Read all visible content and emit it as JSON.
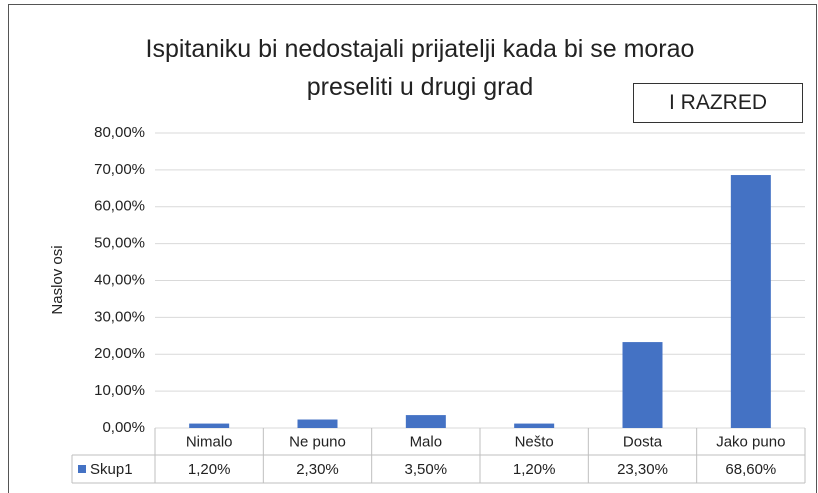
{
  "chart_data": {
    "type": "bar",
    "title": "Ispitaniku bi nedostajali prijatelji kada bi se morao preseliti u drugi grad",
    "annotation": "I RAZRED",
    "y_label": "Naslov osi",
    "categories": [
      "Nimalo",
      "Ne puno",
      "Malo",
      "Nešto",
      "Dosta",
      "Jako puno"
    ],
    "series": [
      {
        "name": "Skup1",
        "color": "#4472c4",
        "values": [
          1.2,
          2.3,
          3.5,
          1.2,
          23.3,
          68.6
        ],
        "value_labels": [
          "1,20%",
          "2,30%",
          "3,50%",
          "1,20%",
          "23,30%",
          "68,60%"
        ]
      }
    ],
    "ylim": [
      0,
      80
    ],
    "yticks": [
      {
        "value": 0,
        "label": "0,00%"
      },
      {
        "value": 10,
        "label": "10,00%"
      },
      {
        "value": 20,
        "label": "20,00%"
      },
      {
        "value": 30,
        "label": "30,00%"
      },
      {
        "value": 40,
        "label": "40,00%"
      },
      {
        "value": 50,
        "label": "50,00%"
      },
      {
        "value": 60,
        "label": "60,00%"
      },
      {
        "value": 70,
        "label": "70,00%"
      },
      {
        "value": 80,
        "label": "80,00%"
      }
    ],
    "grid": true
  }
}
